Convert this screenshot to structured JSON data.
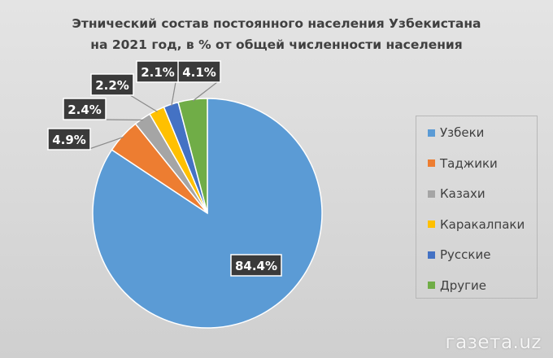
{
  "chart_data": {
    "type": "pie",
    "title_line1": "Этнический состав постоянного населения Узбекистана",
    "title_line2": "на 2021 год, в % от общей численности населения",
    "slices": [
      {
        "name": "Узбеки",
        "value": 84.4,
        "label": "84.4%",
        "color": "#5b9bd5"
      },
      {
        "name": "Таджики",
        "value": 4.9,
        "label": "4.9%",
        "color": "#ed7d31"
      },
      {
        "name": "Казахи",
        "value": 2.4,
        "label": "2.4%",
        "color": "#a5a5a5"
      },
      {
        "name": "Каракалпаки",
        "value": 2.2,
        "label": "2.2%",
        "color": "#ffc000"
      },
      {
        "name": "Русские",
        "value": 2.1,
        "label": "2.1%",
        "color": "#4472c4"
      },
      {
        "name": "Другие",
        "value": 4.1,
        "label": "4.1%",
        "color": "#70ad47"
      }
    ],
    "legend_position": "right"
  },
  "watermark": "газета.uz"
}
